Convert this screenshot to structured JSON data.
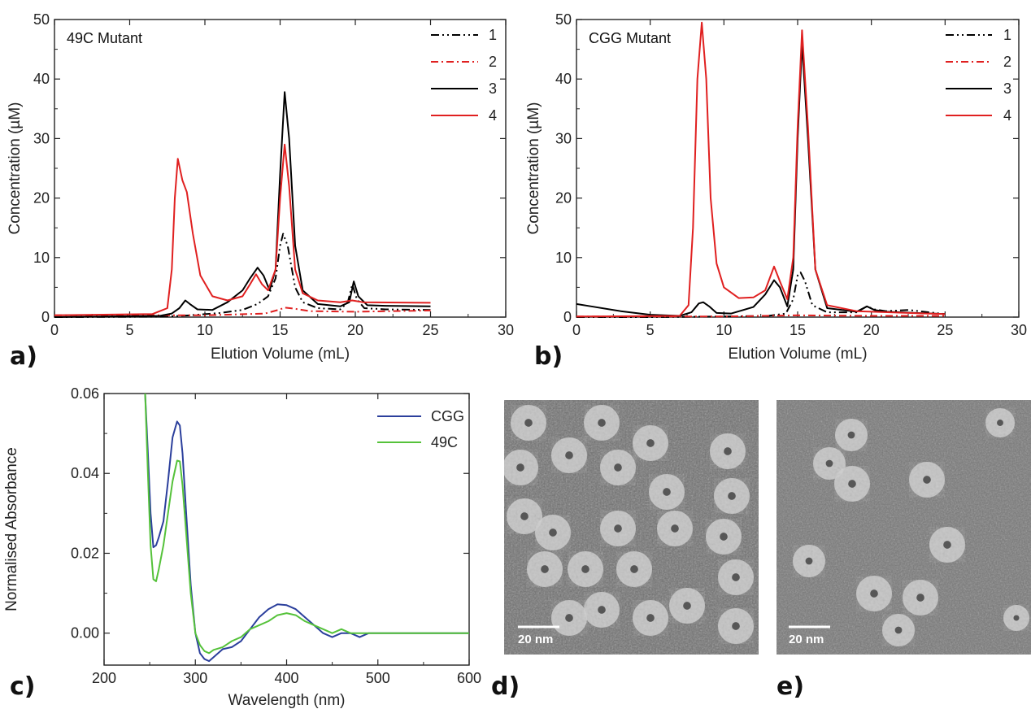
{
  "chart_data": [
    {
      "panel": "a)",
      "type": "line",
      "annotation": "49C Mutant",
      "xlabel": "Elution Volume (mL)",
      "ylabel": "Concentration (µM)",
      "xlim": [
        0,
        30
      ],
      "ylim": [
        0,
        50
      ],
      "xticks": [
        0,
        5,
        10,
        15,
        20,
        25,
        30
      ],
      "yticks": [
        0,
        10,
        20,
        30,
        40,
        50
      ],
      "grid": false,
      "legend_position": "top-right",
      "series": [
        {
          "name": "1",
          "color": "#000000",
          "dash": "dash-dot-dot",
          "x": [
            0,
            5,
            7.5,
            9,
            11,
            12.5,
            13.5,
            14.2,
            14.7,
            15.0,
            15.2,
            15.5,
            16.0,
            16.5,
            17.5,
            19,
            19.5,
            19.8,
            20.1,
            20.6,
            22,
            25
          ],
          "y": [
            0,
            0.05,
            0.1,
            0.3,
            0.7,
            1.2,
            2.2,
            3.5,
            6.5,
            12,
            14,
            12,
            5,
            2.5,
            1.5,
            1.3,
            2.5,
            5.5,
            3,
            1.5,
            1.3,
            1.2
          ]
        },
        {
          "name": "2",
          "color": "#e02020",
          "dash": "dash-dot",
          "x": [
            0,
            10,
            14,
            15,
            15.3,
            16,
            17,
            20,
            25
          ],
          "y": [
            0.3,
            0.3,
            0.6,
            1.3,
            1.6,
            1.4,
            1.0,
            0.9,
            1.1
          ]
        },
        {
          "name": "3",
          "color": "#000000",
          "dash": "solid",
          "x": [
            0,
            7,
            7.8,
            8.3,
            8.7,
            9.0,
            9.5,
            10.5,
            11.5,
            12.5,
            13.0,
            13.5,
            13.9,
            14.3,
            14.7,
            15.0,
            15.3,
            15.6,
            16.0,
            16.5,
            17.5,
            19,
            19.6,
            19.9,
            20.2,
            20.8,
            22,
            25
          ],
          "y": [
            0,
            0.2,
            0.6,
            1.5,
            2.8,
            2.2,
            1.3,
            1.2,
            2.5,
            4.5,
            6.5,
            8.3,
            7.0,
            4.5,
            8,
            24,
            37.8,
            30,
            12,
            4.5,
            2.2,
            1.8,
            2.5,
            6.0,
            3.5,
            2,
            1.9,
            1.8
          ]
        },
        {
          "name": "4",
          "color": "#e02020",
          "dash": "solid",
          "x": [
            0,
            6.5,
            7.5,
            7.8,
            8.0,
            8.2,
            8.5,
            8.8,
            9.2,
            9.7,
            10.5,
            11.5,
            12.5,
            13.0,
            13.4,
            13.8,
            14.2,
            14.7,
            15.0,
            15.3,
            15.6,
            16.0,
            16.5,
            17.5,
            19,
            19.8,
            20.5,
            25
          ],
          "y": [
            0.3,
            0.5,
            1.5,
            8,
            20,
            26.6,
            23,
            21,
            14,
            7,
            3.5,
            2.8,
            3.5,
            5.5,
            7.2,
            5.5,
            4.5,
            8,
            20,
            29,
            22,
            8,
            4,
            2.8,
            2.5,
            2.8,
            2.5,
            2.4
          ]
        }
      ]
    },
    {
      "panel": "b)",
      "type": "line",
      "annotation": "CGG Mutant",
      "xlabel": "Elution Volume (mL)",
      "ylabel": "Concentration (µM)",
      "xlim": [
        0,
        30
      ],
      "ylim": [
        0,
        50
      ],
      "xticks": [
        0,
        5,
        10,
        15,
        20,
        25,
        30
      ],
      "yticks": [
        0,
        10,
        20,
        30,
        40,
        50
      ],
      "grid": false,
      "legend_position": "top-right",
      "series": [
        {
          "name": "1",
          "color": "#000000",
          "dash": "dash-dot-dot",
          "x": [
            0,
            5,
            10,
            13,
            14.2,
            14.7,
            15.0,
            15.2,
            15.5,
            16.0,
            17,
            19,
            19.7,
            20.2,
            21,
            22.5,
            25
          ],
          "y": [
            0,
            0,
            0.1,
            0.2,
            0.6,
            3,
            7,
            7.5,
            6,
            2,
            0.8,
            0.8,
            1.8,
            1.3,
            1.0,
            1.2,
            0.5
          ]
        },
        {
          "name": "2",
          "color": "#e02020",
          "dash": "dash-dot",
          "x": [
            0,
            10,
            15,
            20,
            25
          ],
          "y": [
            0.1,
            0.1,
            0.3,
            0.2,
            0.2
          ]
        },
        {
          "name": "3",
          "color": "#000000",
          "dash": "solid",
          "x": [
            0,
            1,
            3,
            5,
            7,
            7.8,
            8.3,
            8.6,
            9.0,
            9.5,
            10.5,
            12,
            12.8,
            13.4,
            13.8,
            14.3,
            14.7,
            15.0,
            15.3,
            15.7,
            16.2,
            17,
            19,
            19.7,
            20.2,
            21,
            25
          ],
          "y": [
            2.2,
            1.8,
            1.0,
            0.4,
            0.2,
            0.8,
            2.3,
            2.5,
            1.8,
            0.7,
            0.6,
            1.7,
            3.8,
            6.2,
            5,
            1.8,
            8,
            30,
            46,
            30,
            8,
            1.5,
            0.9,
            1.8,
            1.2,
            0.9,
            0.5
          ]
        },
        {
          "name": "4",
          "color": "#e02020",
          "dash": "solid",
          "x": [
            0,
            7,
            7.6,
            7.9,
            8.2,
            8.5,
            8.8,
            9.1,
            9.5,
            10.0,
            11,
            12,
            12.8,
            13.4,
            13.8,
            14.3,
            14.7,
            15.0,
            15.3,
            15.7,
            16.2,
            17,
            19,
            25
          ],
          "y": [
            0.1,
            0.2,
            2,
            15,
            40,
            49.5,
            40,
            20,
            9,
            5,
            3.2,
            3.3,
            4.5,
            8.5,
            6,
            3,
            10,
            32,
            48.2,
            32,
            8,
            2,
            1,
            0.5
          ]
        }
      ]
    },
    {
      "panel": "c)",
      "type": "line",
      "annotation": "",
      "xlabel": "Wavelength (nm)",
      "ylabel": "Normalised Absorbance",
      "xlim": [
        200,
        600
      ],
      "ylim": [
        -0.008,
        0.06
      ],
      "xticks": [
        200,
        300,
        400,
        500,
        600
      ],
      "yticks": [
        0.0,
        0.02,
        0.04,
        0.06
      ],
      "ytick_labels": [
        "0.00",
        "0.02",
        "0.04",
        "0.06"
      ],
      "grid": false,
      "legend_position": "top-right",
      "series": [
        {
          "name": "CGG",
          "color": "#2b3f9c",
          "dash": "solid",
          "x": [
            245,
            248,
            251,
            254,
            257,
            260,
            265,
            270,
            275,
            280,
            283,
            286,
            290,
            295,
            300,
            305,
            310,
            315,
            320,
            330,
            340,
            350,
            360,
            370,
            380,
            390,
            400,
            410,
            420,
            430,
            440,
            450,
            460,
            470,
            480,
            490,
            500,
            520,
            540,
            560,
            580,
            600
          ],
          "y": [
            0.06,
            0.045,
            0.03,
            0.0215,
            0.022,
            0.024,
            0.028,
            0.038,
            0.049,
            0.053,
            0.052,
            0.045,
            0.03,
            0.012,
            0.0,
            -0.005,
            -0.0065,
            -0.007,
            -0.006,
            -0.004,
            -0.0035,
            -0.002,
            0.001,
            0.004,
            0.006,
            0.0072,
            0.007,
            0.006,
            0.004,
            0.002,
            0.0,
            -0.001,
            0.0,
            0.0,
            -0.001,
            0.0,
            0.0,
            0.0,
            0.0,
            0.0,
            0.0,
            0.0
          ]
        },
        {
          "name": "49C",
          "color": "#55c23a",
          "dash": "solid",
          "x": [
            245,
            248,
            251,
            254,
            257,
            260,
            265,
            270,
            275,
            280,
            283,
            286,
            290,
            295,
            300,
            305,
            310,
            315,
            320,
            330,
            340,
            350,
            360,
            370,
            380,
            390,
            400,
            410,
            420,
            430,
            440,
            450,
            460,
            470,
            480,
            490,
            500,
            520,
            540,
            560,
            580,
            600
          ],
          "y": [
            0.06,
            0.04,
            0.022,
            0.0135,
            0.013,
            0.016,
            0.022,
            0.03,
            0.038,
            0.0432,
            0.043,
            0.037,
            0.025,
            0.01,
            0.0,
            -0.003,
            -0.0045,
            -0.005,
            -0.0042,
            -0.0035,
            -0.002,
            -0.001,
            0.001,
            0.002,
            0.003,
            0.0045,
            0.005,
            0.0045,
            0.003,
            0.002,
            0.001,
            0.0,
            0.001,
            0.0,
            0.0,
            0.0,
            0.0,
            0.0,
            0.0,
            0.0,
            0.0,
            0.0
          ]
        }
      ]
    }
  ],
  "images": [
    {
      "panel": "d)",
      "scale_bar_label": "20 nm"
    },
    {
      "panel": "e)",
      "scale_bar_label": "20 nm"
    }
  ]
}
